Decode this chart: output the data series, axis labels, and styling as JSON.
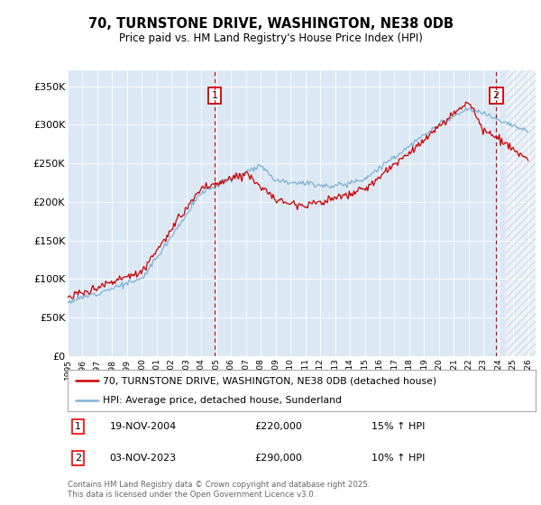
{
  "title": "70, TURNSTONE DRIVE, WASHINGTON, NE38 0DB",
  "subtitle": "Price paid vs. HM Land Registry's House Price Index (HPI)",
  "ylabel_ticks": [
    "£0",
    "£50K",
    "£100K",
    "£150K",
    "£200K",
    "£250K",
    "£300K",
    "£350K"
  ],
  "ytick_values": [
    0,
    50000,
    100000,
    150000,
    200000,
    250000,
    300000,
    350000
  ],
  "ylim": [
    0,
    370000
  ],
  "xlim_start": 1995.0,
  "xlim_end": 2026.5,
  "bg_color": "#dce9f5",
  "line1_color": "#cc0000",
  "line2_color": "#7fb3d3",
  "marker1_date": 2004.89,
  "marker2_date": 2023.84,
  "marker1_value": 220000,
  "marker2_value": 290000,
  "legend_line1": "70, TURNSTONE DRIVE, WASHINGTON, NE38 0DB (detached house)",
  "legend_line2": "HPI: Average price, detached house, Sunderland",
  "note1_date": "19-NOV-2004",
  "note1_price": "£220,000",
  "note1_hpi": "15% ↑ HPI",
  "note2_date": "03-NOV-2023",
  "note2_price": "£290,000",
  "note2_hpi": "10% ↑ HPI",
  "footer": "Contains HM Land Registry data © Crown copyright and database right 2025.\nThis data is licensed under the Open Government Licence v3.0.",
  "shade_start": 2024.5
}
